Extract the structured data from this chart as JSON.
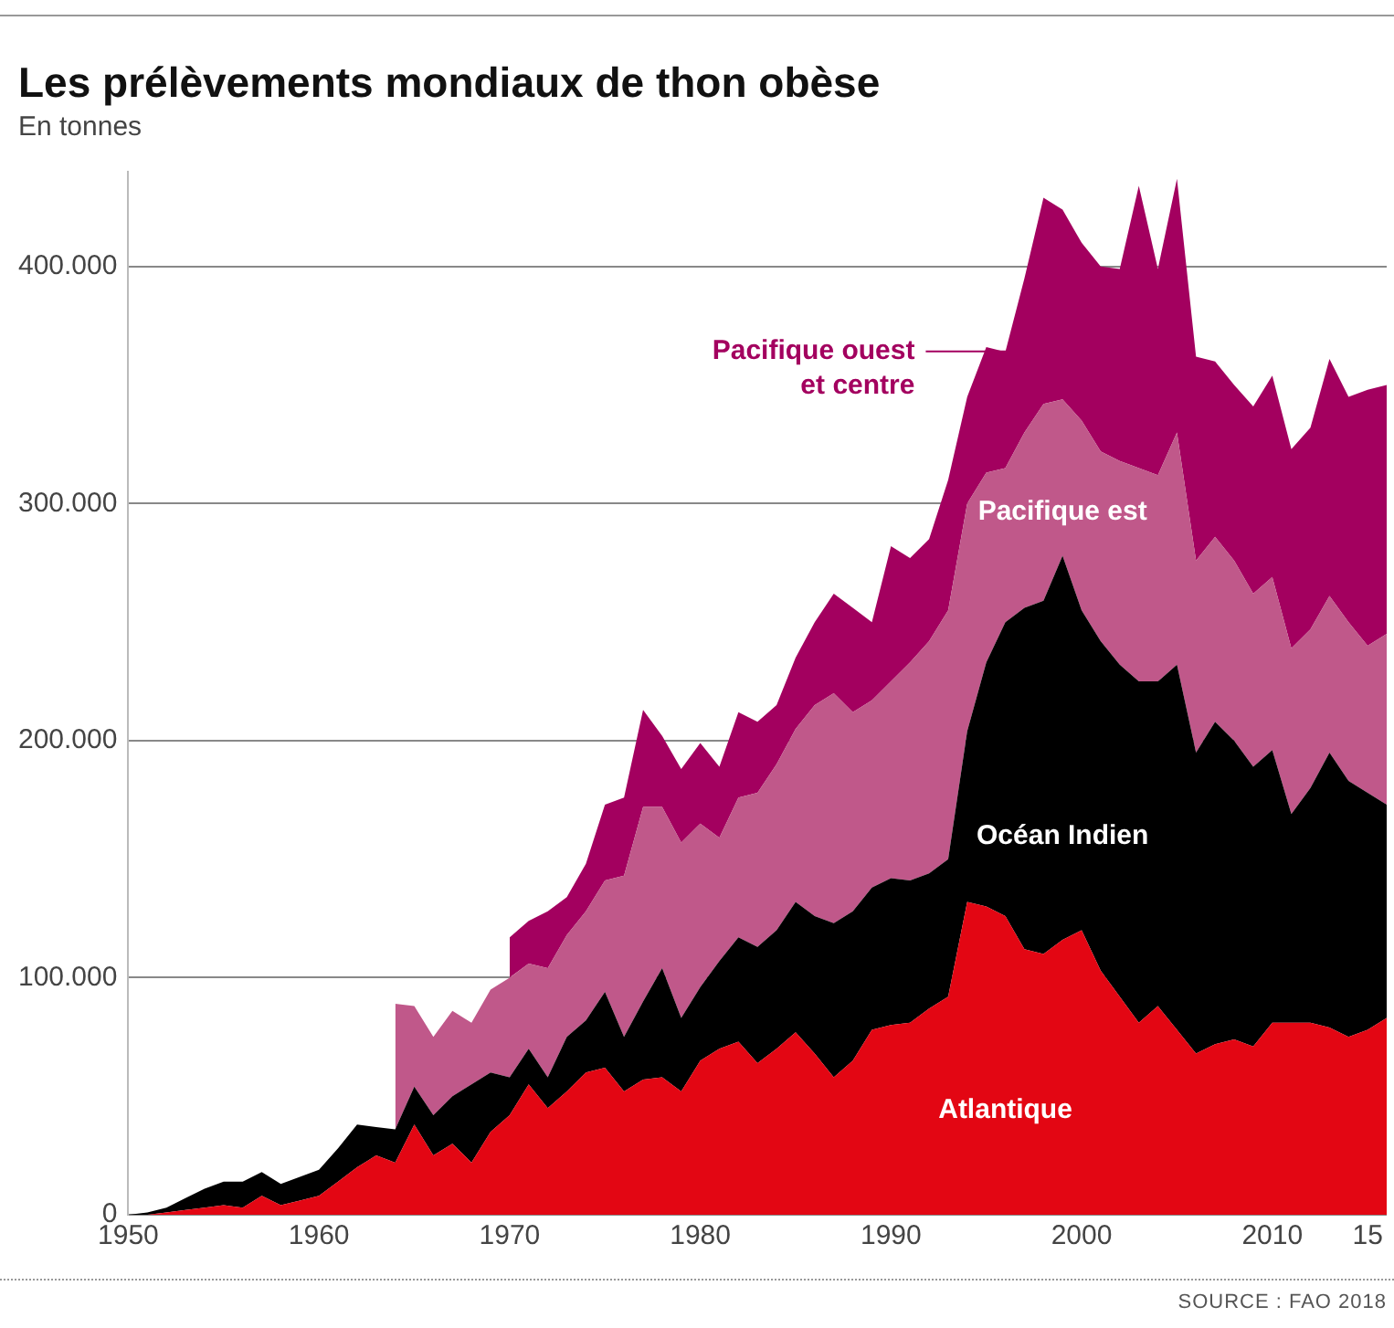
{
  "chart_data": {
    "type": "area",
    "title": "Les prélèvements mondiaux de thon obèse",
    "ylabel": "En tonnes",
    "annotations": [
      "SOURCE : FAO 2018"
    ],
    "stacked": true,
    "grid": "y",
    "legend": false,
    "x": [
      1950,
      1951,
      1952,
      1953,
      1954,
      1955,
      1956,
      1957,
      1958,
      1959,
      1960,
      1961,
      1962,
      1963,
      1964,
      1965,
      1966,
      1967,
      1968,
      1969,
      1970,
      1971,
      1972,
      1973,
      1974,
      1975,
      1976,
      1977,
      1978,
      1979,
      1980,
      1981,
      1982,
      1983,
      1984,
      1985,
      1986,
      1987,
      1988,
      1989,
      1990,
      1991,
      1992,
      1993,
      1994,
      1995,
      1996,
      1997,
      1998,
      1999,
      2000,
      2001,
      2002,
      2003,
      2004,
      2005,
      2006,
      2007,
      2008,
      2009,
      2010,
      2011,
      2012,
      2013,
      2014,
      2015,
      2016
    ],
    "xlim": [
      1950,
      2016
    ],
    "xticks": [
      1950,
      1960,
      1970,
      1980,
      1990,
      2000,
      2010,
      {
        "value": 2015,
        "label": "15"
      }
    ],
    "ylim": [
      0,
      440000
    ],
    "yticks": [
      0,
      {
        "value": 100000,
        "label": "100.000"
      },
      {
        "value": 200000,
        "label": "200.000"
      },
      {
        "value": 300000,
        "label": "300.000"
      },
      {
        "value": 400000,
        "label": "400.000"
      }
    ],
    "series": [
      {
        "name": "Atlantique",
        "color": "#e30613",
        "values": [
          0,
          0,
          1000,
          2000,
          3000,
          4000,
          3000,
          8000,
          4000,
          6000,
          8000,
          14000,
          20000,
          25000,
          22000,
          38000,
          25000,
          30000,
          22000,
          35000,
          42000,
          55000,
          45000,
          52000,
          60000,
          62000,
          52000,
          57000,
          58000,
          52000,
          65000,
          70000,
          73000,
          64000,
          70000,
          77000,
          68000,
          58000,
          65000,
          78000,
          80000,
          81000,
          87000,
          92000,
          132000,
          130000,
          126000,
          112000,
          110000,
          116000,
          120000,
          103000,
          92000,
          81000,
          88000,
          78000,
          68000,
          72000,
          74000,
          71000,
          81000,
          81000,
          81000,
          79000,
          75000,
          78000,
          83000
        ]
      },
      {
        "name": "Océan Indien",
        "color": "#000000",
        "values": [
          0,
          1000,
          2000,
          5000,
          8000,
          10000,
          11000,
          10000,
          9000,
          10000,
          11000,
          14000,
          18000,
          12000,
          14000,
          16000,
          17000,
          20000,
          33000,
          25000,
          16000,
          15000,
          13000,
          23000,
          22000,
          32000,
          23000,
          33000,
          46000,
          31000,
          31000,
          37000,
          44000,
          49000,
          50000,
          55000,
          58000,
          65000,
          63000,
          60000,
          62000,
          60000,
          57000,
          58000,
          72000,
          103000,
          124000,
          144000,
          149000,
          162000,
          135000,
          139000,
          140000,
          144000,
          137000,
          154000,
          127000,
          136000,
          126000,
          118000,
          115000,
          88000,
          99000,
          116000,
          108000,
          100000,
          90000
        ]
      },
      {
        "name": "Pacifique est",
        "color": "#c0588a",
        "values": [
          null,
          null,
          null,
          null,
          null,
          null,
          null,
          null,
          null,
          null,
          null,
          null,
          null,
          null,
          53000,
          34000,
          33000,
          36000,
          26000,
          35000,
          42000,
          36000,
          46000,
          43000,
          46000,
          47000,
          68000,
          82000,
          68000,
          74000,
          69000,
          52000,
          59000,
          65000,
          70000,
          73000,
          89000,
          97000,
          84000,
          79000,
          83000,
          92000,
          98000,
          105000,
          96000,
          80000,
          65000,
          74000,
          83000,
          66000,
          80000,
          80000,
          86000,
          90000,
          87000,
          98000,
          81000,
          78000,
          76000,
          73000,
          73000,
          70000,
          67000,
          66000,
          67000,
          62000,
          72000
        ]
      },
      {
        "name": "Pacifique ouest et centre",
        "color": "#a3005f",
        "values": [
          null,
          null,
          null,
          null,
          null,
          null,
          null,
          null,
          null,
          null,
          null,
          null,
          null,
          null,
          null,
          null,
          null,
          null,
          null,
          null,
          17000,
          18000,
          24000,
          16000,
          20000,
          32000,
          33000,
          41000,
          30000,
          31000,
          34000,
          30000,
          36000,
          30000,
          25000,
          30000,
          35000,
          42000,
          44000,
          33000,
          57000,
          44000,
          43000,
          55000,
          45000,
          53000,
          49000,
          65000,
          87000,
          80000,
          75000,
          78000,
          81000,
          119000,
          87000,
          107000,
          86000,
          74000,
          74000,
          79000,
          85000,
          84000,
          85000,
          100000,
          95000,
          108000,
          105000
        ]
      }
    ]
  }
}
